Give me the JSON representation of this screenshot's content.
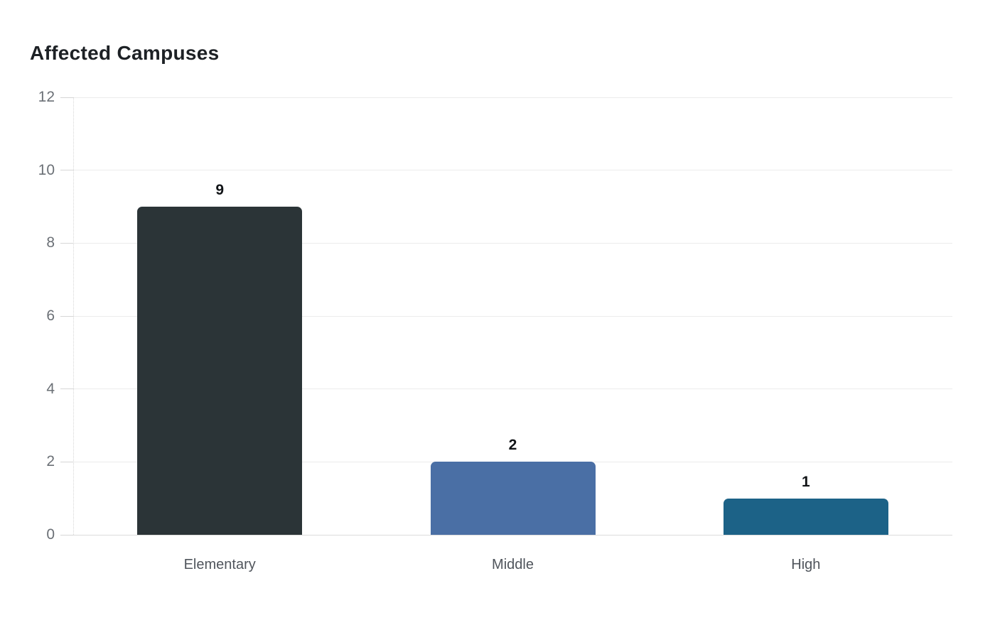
{
  "chart_data": {
    "type": "bar",
    "title": "Affected Campuses",
    "categories": [
      "Elementary",
      "Middle",
      "High"
    ],
    "values": [
      9,
      2,
      1
    ],
    "value_labels": [
      "9",
      "2",
      "1"
    ],
    "bar_colors": [
      "#2b3437",
      "#4a6fa5",
      "#1c6287"
    ],
    "xlabel": "",
    "ylabel": "",
    "ylim": [
      0,
      12
    ],
    "yticks": [
      0,
      2,
      4,
      6,
      8,
      10,
      12
    ],
    "grid": "horizontal",
    "legend": "none",
    "colors": {
      "title": "#1d2125",
      "grid_line": "#ececec",
      "baseline": "#dcdcdc",
      "tick_mark": "#d6d6d6",
      "axis_dotted_line": "#d6d6d6",
      "y_tick_label": "#6b7076",
      "x_tick_label": "#50555c",
      "value_label": "#111417",
      "background": "#ffffff"
    }
  }
}
